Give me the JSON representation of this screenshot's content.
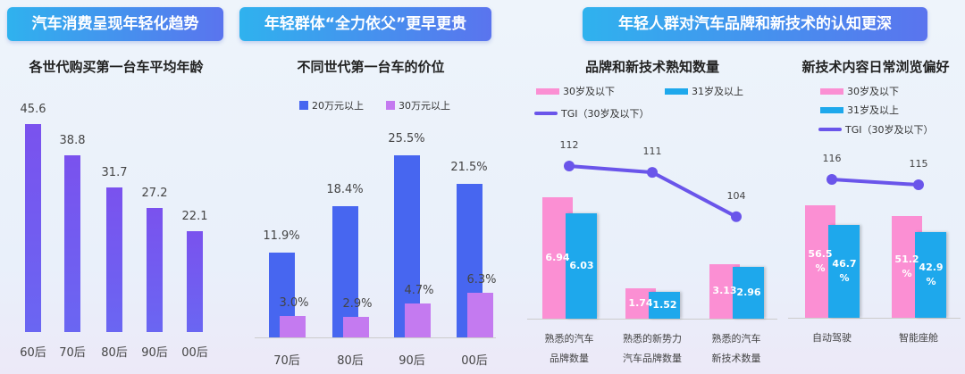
{
  "banners": [
    "汽车消费呈现年轻化趋势",
    "年轻群体“全力依父”更早更贵",
    "年轻人群对汽车品牌和新技术的认知更深"
  ],
  "colors": {
    "purple": "#7558ee",
    "blue": "#4766f0",
    "violet": "#c47af0",
    "pink": "#fb8fd3",
    "cyan": "#1ea8ec",
    "line": "#6a55ea"
  },
  "chart_data": [
    {
      "type": "bar",
      "title": "各世代购买第一台车平均年龄",
      "categories": [
        "60后",
        "70后",
        "80后",
        "90后",
        "00后"
      ],
      "values": [
        45.6,
        38.8,
        31.7,
        27.2,
        22.1
      ],
      "value_labels": [
        "45.6",
        "38.8",
        "31.7",
        "27.2",
        "22.1"
      ]
    },
    {
      "type": "bar",
      "title": "不同世代第一台车的价位",
      "categories": [
        "70后",
        "80后",
        "90后",
        "00后"
      ],
      "series": [
        {
          "name": "20万元以上",
          "values": [
            11.9,
            18.4,
            25.5,
            21.5
          ],
          "labels": [
            "11.9%",
            "18.4%",
            "25.5%",
            "21.5%"
          ]
        },
        {
          "name": "30万元以上",
          "values": [
            3.0,
            2.9,
            4.7,
            6.3
          ],
          "labels": [
            "3.0%",
            "2.9%",
            "4.7%",
            "6.3%"
          ]
        }
      ],
      "legend": "top"
    },
    {
      "type": "bar",
      "title": "品牌和新技术熟知数量",
      "categories": [
        "熟悉的汽车\n品牌数量",
        "熟悉的新势力\n汽车品牌数量",
        "熟悉的汽车\n新技术数量"
      ],
      "series": [
        {
          "name": "30岁及以下",
          "values": [
            6.94,
            1.74,
            3.13
          ],
          "labels": [
            "6.94",
            "1.74",
            "3.13"
          ]
        },
        {
          "name": "31岁及以上",
          "values": [
            6.03,
            1.52,
            2.96
          ],
          "labels": [
            "6.03",
            "1.52",
            "2.96"
          ]
        },
        {
          "name": "TGI（30岁及以下）",
          "type": "line",
          "values": [
            112,
            111,
            104
          ],
          "labels": [
            "112",
            "111",
            "104"
          ]
        }
      ],
      "legend": "top"
    },
    {
      "type": "bar",
      "title": "新技术内容日常浏览偏好",
      "categories": [
        "自动驾驶",
        "智能座舱"
      ],
      "series": [
        {
          "name": "30岁及以下",
          "values": [
            56.5,
            51.2
          ],
          "labels": [
            "56.5\n%",
            "51.2\n%"
          ]
        },
        {
          "name": "31岁及以上",
          "values": [
            46.7,
            42.9
          ],
          "labels": [
            "46.7\n%",
            "42.9\n%"
          ]
        },
        {
          "name": "TGI（30岁及以下）",
          "type": "line",
          "values": [
            116,
            115
          ],
          "labels": [
            "116",
            "115"
          ]
        }
      ],
      "legend": "top"
    }
  ]
}
